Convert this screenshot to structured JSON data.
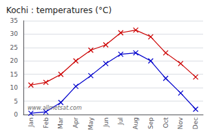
{
  "chart_data": {
    "type": "line",
    "title": "Kochi : temperatures (°C)",
    "categories": [
      "Jan",
      "Feb",
      "Mar",
      "Apr",
      "May",
      "Jun",
      "Jul",
      "Aug",
      "Sep",
      "Oct",
      "Nov",
      "Dec"
    ],
    "series": [
      {
        "color": "#cc0000",
        "values": [
          11,
          12,
          15,
          20,
          24,
          26,
          30.5,
          31.5,
          29,
          23,
          19,
          14
        ]
      },
      {
        "color": "#0000cc",
        "values": [
          0.5,
          1,
          4.5,
          10.5,
          14.5,
          19,
          22.5,
          23,
          20,
          13.5,
          8,
          2
        ]
      }
    ],
    "ylim": [
      0,
      35
    ],
    "yticks": [
      0,
      5,
      10,
      15,
      20,
      25,
      30,
      35
    ],
    "grid": true,
    "marker": "x",
    "annotation": "www.allmetsat.com"
  }
}
